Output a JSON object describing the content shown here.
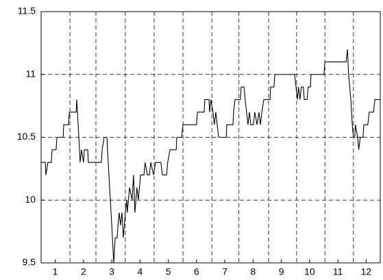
{
  "chart_data": {
    "type": "line",
    "x": [
      0.5,
      0.65,
      0.67,
      0.74,
      0.86,
      0.89,
      1.03,
      1.06,
      1.28,
      1.3,
      1.47,
      1.5,
      1.74,
      1.76,
      1.81,
      1.86,
      1.88,
      1.93,
      2.0,
      2.03,
      2.15,
      2.17,
      2.63,
      2.66,
      2.73,
      2.83,
      2.85,
      2.9,
      3.0,
      3.07,
      3.12,
      3.19,
      3.22,
      3.26,
      3.31,
      3.36,
      3.41,
      3.48,
      3.53,
      3.55,
      3.63,
      3.72,
      3.77,
      3.82,
      3.89,
      3.94,
      4.02,
      4.14,
      4.18,
      4.26,
      4.33,
      4.38,
      4.48,
      4.55,
      4.74,
      4.79,
      4.94,
      4.98,
      5.06,
      5.28,
      5.3,
      5.47,
      5.52,
      6.0,
      6.03,
      6.27,
      6.29,
      6.44,
      6.46,
      6.51,
      6.58,
      6.63,
      6.68,
      6.73,
      6.78,
      6.85,
      7.05,
      7.07,
      7.29,
      7.31,
      7.36,
      7.55,
      7.58,
      7.68,
      7.72,
      7.77,
      7.82,
      7.87,
      7.92,
      8.01,
      8.06,
      8.14,
      8.21,
      8.26,
      8.31,
      8.38,
      8.6,
      8.62,
      8.74,
      8.77,
      9.47,
      9.52,
      9.57,
      9.61,
      9.66,
      9.71,
      9.78,
      9.81,
      9.91,
      9.95,
      10.03,
      10.05,
      10.51,
      10.54,
      11.29,
      11.34,
      11.38,
      11.46,
      11.51,
      11.55,
      11.6,
      11.62,
      11.7,
      11.74,
      11.79,
      11.89,
      11.92,
      12.06,
      12.11,
      12.26,
      12.31,
      12.5
    ],
    "values": [
      10.3,
      10.3,
      10.2,
      10.3,
      10.3,
      10.4,
      10.4,
      10.5,
      10.5,
      10.6,
      10.6,
      10.7,
      10.7,
      10.8,
      10.6,
      10.4,
      10.3,
      10.4,
      10.3,
      10.4,
      10.4,
      10.3,
      10.3,
      10.4,
      10.5,
      10.5,
      10.4,
      10.2,
      9.8,
      9.5,
      9.7,
      9.7,
      9.8,
      9.9,
      9.8,
      9.9,
      9.7,
      9.9,
      10.0,
      9.9,
      10.1,
      10.0,
      10.2,
      9.9,
      10.1,
      10.0,
      10.2,
      10.2,
      10.3,
      10.2,
      10.2,
      10.3,
      10.2,
      10.3,
      10.3,
      10.2,
      10.2,
      10.3,
      10.4,
      10.4,
      10.5,
      10.5,
      10.6,
      10.6,
      10.7,
      10.7,
      10.8,
      10.8,
      10.7,
      10.8,
      10.7,
      10.6,
      10.7,
      10.6,
      10.5,
      10.5,
      10.5,
      10.6,
      10.6,
      10.7,
      10.8,
      10.8,
      10.9,
      10.9,
      10.8,
      10.7,
      10.6,
      10.7,
      10.6,
      10.6,
      10.7,
      10.6,
      10.7,
      10.6,
      10.7,
      10.8,
      10.8,
      10.9,
      10.9,
      11.0,
      11.0,
      10.9,
      10.8,
      10.9,
      10.8,
      10.9,
      10.9,
      10.8,
      10.8,
      10.9,
      10.9,
      11.0,
      11.0,
      11.1,
      11.1,
      11.2,
      11.0,
      10.8,
      10.6,
      10.5,
      10.5,
      10.6,
      10.5,
      10.4,
      10.5,
      10.5,
      10.6,
      10.6,
      10.7,
      10.7,
      10.8,
      10.8
    ],
    "color": "#000000",
    "xlim": [
      0.5,
      12.5
    ],
    "xticks": [
      1,
      2,
      3,
      4,
      5,
      6,
      7,
      8,
      9,
      10,
      11,
      12
    ],
    "ylim": [
      9.5,
      11.5
    ],
    "yticks": [
      9.5,
      10,
      10.5,
      11,
      11.5
    ],
    "x_gridlines": [
      1.52,
      2.44,
      3.48,
      4.5,
      5.52,
      6.54,
      7.5,
      8.55,
      9.54,
      10.54,
      11.55
    ],
    "grid": true
  }
}
